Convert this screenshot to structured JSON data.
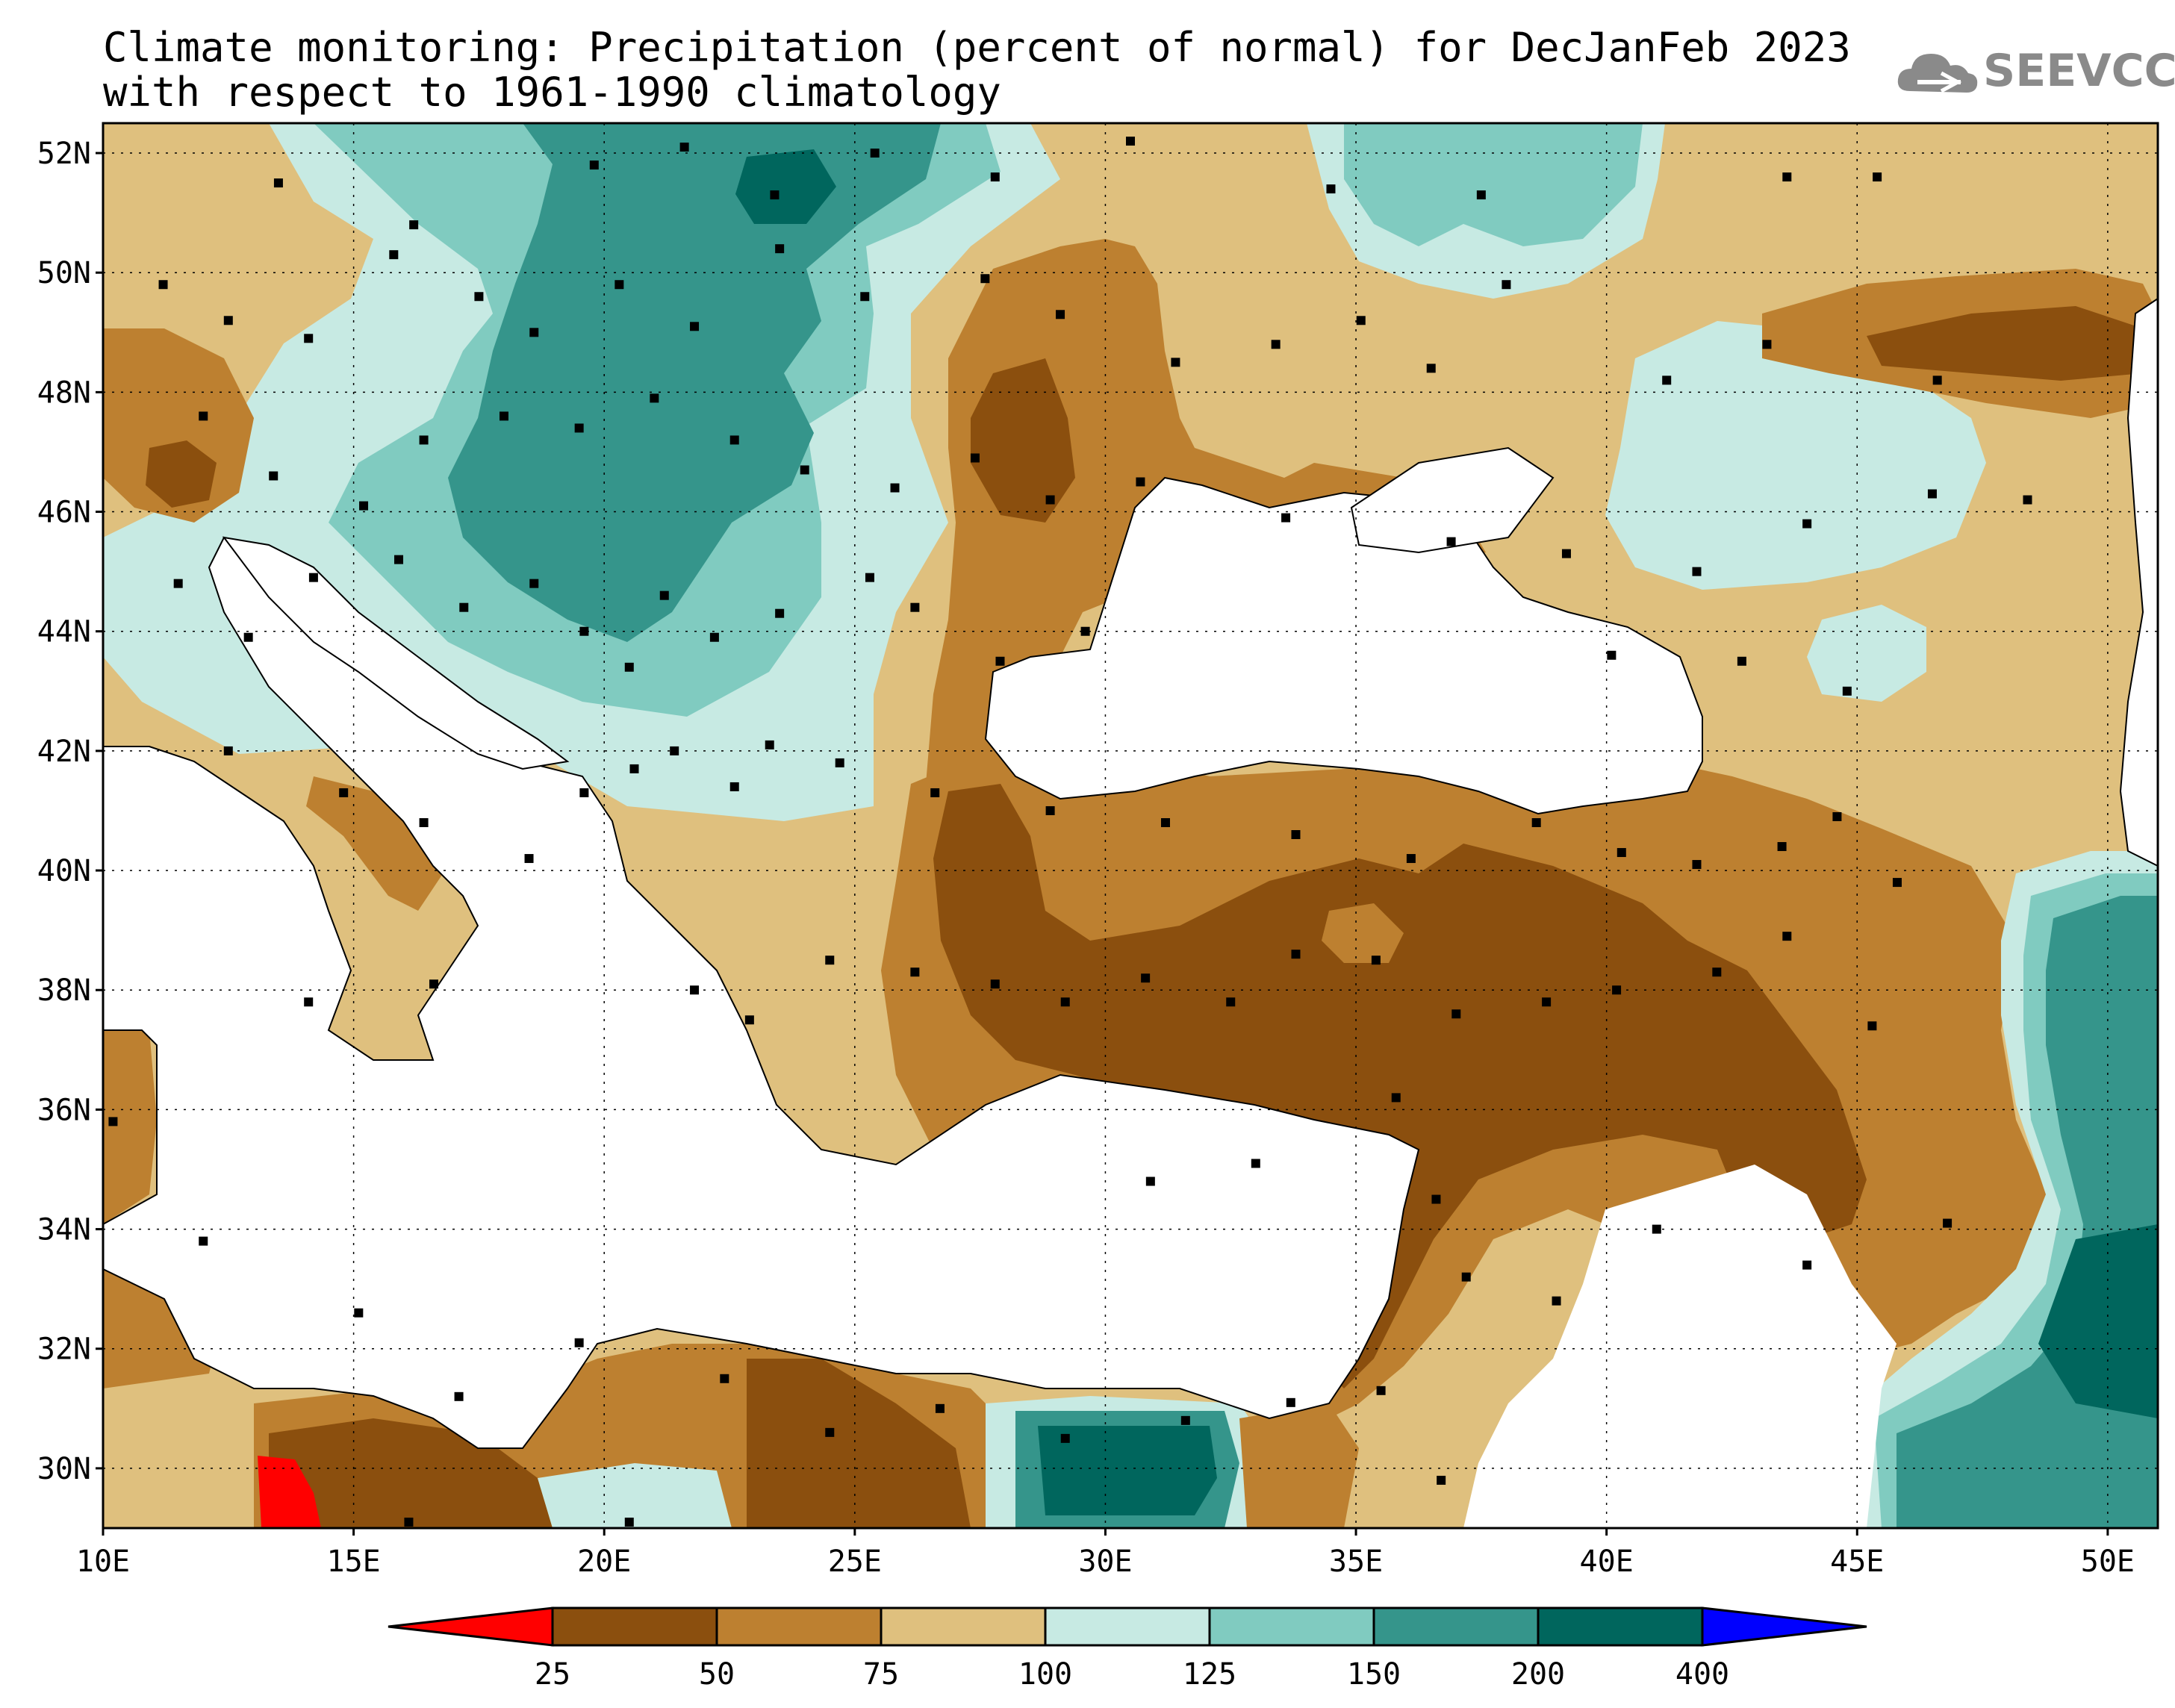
{
  "title": {
    "line1": "Climate monitoring: Precipitation (percent of normal) for DecJanFeb 2023",
    "line2": "with respect to 1961-1990 climatology"
  },
  "logo": {
    "text": "SEEVCCC",
    "icon": "cloud-icon"
  },
  "map": {
    "lon_range": [
      10,
      51
    ],
    "lat_range": [
      29,
      52.5
    ],
    "x_ticks": [
      "10E",
      "15E",
      "20E",
      "25E",
      "30E",
      "35E",
      "40E",
      "45E",
      "50E"
    ],
    "y_ticks": [
      "30N",
      "32N",
      "34N",
      "36N",
      "38N",
      "40N",
      "42N",
      "44N",
      "46N",
      "48N",
      "50N",
      "52N"
    ],
    "grid": "dotted"
  },
  "colorbar": {
    "bounds": [
      "25",
      "50",
      "75",
      "100",
      "125",
      "150",
      "200",
      "400"
    ],
    "colors": [
      "#ff0000",
      "#8b4f0e",
      "#bd8030",
      "#dfc07e",
      "#c7eae3",
      "#80cbc0",
      "#35958b",
      "#00665d",
      "#0000ff"
    ],
    "extend": "both"
  },
  "colors": {
    "land_no_data": "#ffffff",
    "sea": "#ffffff",
    "station": "#000000"
  }
}
